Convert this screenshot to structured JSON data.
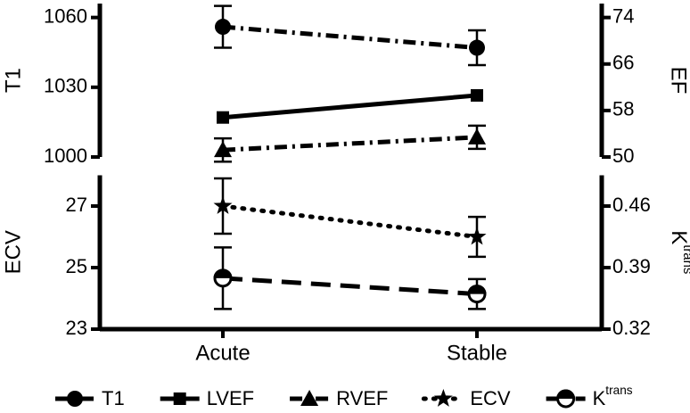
{
  "chart_data": [
    {
      "type": "line",
      "ylabel": "T1",
      "y2label": "EF",
      "ylim": [
        1000,
        1066
      ],
      "yticks": [
        1000,
        1030,
        1060
      ],
      "y2lim": [
        50,
        76.4
      ],
      "y2ticks": [
        50,
        58,
        66,
        74
      ],
      "series": [
        {
          "name": "T1",
          "color": "#000000",
          "marker": "circle",
          "dash": "dashdot",
          "values": [
            1056,
            1047
          ],
          "errors": [
            9,
            7.5
          ]
        },
        {
          "name": "LVEF",
          "color": "#000000",
          "marker": "square",
          "dash": "solid",
          "axis": "y2",
          "values": [
            56.8,
            60.6
          ]
        },
        {
          "name": "RVEF",
          "color": "#000000",
          "marker": "triangle",
          "dash": "dashdot",
          "axis": "y2",
          "values": [
            51.2,
            53.4
          ],
          "errors": [
            2,
            2
          ]
        }
      ]
    },
    {
      "type": "line",
      "ylabel": "ECV",
      "y2label": {
        "base": "K",
        "sup": "trans"
      },
      "categories": [
        "Acute",
        "Stable"
      ],
      "ylim": [
        23,
        28
      ],
      "yticks": [
        23,
        25,
        27
      ],
      "y2lim": [
        0.32,
        0.495
      ],
      "y2ticks": [
        0.32,
        0.39,
        0.46
      ],
      "series": [
        {
          "name": "ECV",
          "color": "#000000",
          "marker": "star",
          "dash": "dot",
          "values": [
            27,
            26
          ],
          "errors": [
            0.9,
            0.65
          ]
        },
        {
          "name": {
            "base": "K",
            "sup": "trans"
          },
          "color": "#000000",
          "marker": "halfcircle",
          "dash": "dash",
          "axis": "y2",
          "values": [
            0.378,
            0.36
          ],
          "errors": [
            0.035,
            0.017
          ]
        }
      ]
    }
  ]
}
